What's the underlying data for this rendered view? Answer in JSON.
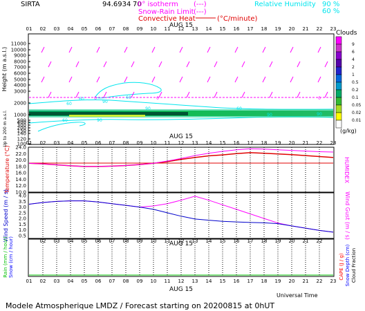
{
  "header": {
    "station": "SIRTA",
    "coords": "94.6934",
    "coords_tail": "70",
    "isotherm_label": "0° isotherm",
    "isotherm_dash": "(---)",
    "snow_label": "Snow-Rain Limit",
    "snow_dash": "(---)",
    "conv_label": "Convective Heat",
    "conv_unit": "(°C/minute)",
    "rh_label": "Relative Humidity",
    "rh_90": "90 %",
    "rh_60": "60 %"
  },
  "date_label": "AUG 15",
  "hours": [
    "01",
    "02",
    "03",
    "04",
    "05",
    "06",
    "07",
    "08",
    "09",
    "10",
    "11",
    "12",
    "13",
    "14",
    "15",
    "16",
    "17",
    "18",
    "19",
    "20",
    "21",
    "22",
    "23"
  ],
  "footer": {
    "universal_time": "Universal Time",
    "forecast": "Modele Atmospherique LMDZ / Forecast starting on 20200815 at 0hUT"
  },
  "colors": {
    "isotherm": "#ff00ff",
    "relative_humidity": "#00e5ee",
    "temperature": "#e00000",
    "humidex": "#ff00ff",
    "wind_speed": "#0000cc",
    "wind_gust": "#ff00ff",
    "rain": "#00c000",
    "snow": "#0000ff",
    "cape": "#ff0000"
  },
  "chart_data": [
    {
      "type": "heatmap",
      "ylabel": "Height  (m a.s.l.)",
      "ylabel_low": "Up to 200 m a.s.l.",
      "yticks": [
        "11000",
        "10000",
        "9000",
        "8000",
        "7000",
        "6000",
        "5000",
        "4000",
        "3000",
        "2000",
        "1000",
        "500",
        "400",
        "300",
        "200",
        "150",
        "140",
        "120",
        "100"
      ],
      "isotherm_marks": [
        "0",
        "0",
        "0",
        "0",
        "0",
        "0"
      ],
      "rh_marks": [
        "60",
        "60",
        "90",
        "60",
        "90",
        "60",
        "60",
        "90",
        "90",
        "90"
      ],
      "clouds": {
        "title": "Clouds",
        "levels": [
          "9",
          "6",
          "4",
          "2",
          "1",
          "0.5",
          "0.2",
          "0.1",
          "0.05",
          "0.02",
          "0.01"
        ],
        "unit": "(g/kg)",
        "colors": [
          "#ff00ff",
          "#cc33cc",
          "#8800cc",
          "#5500aa",
          "#2222cc",
          "#0066dd",
          "#0099cc",
          "#00aa66",
          "#33bb33",
          "#aadd22",
          "#ffff00",
          "#ffffff"
        ]
      },
      "wind_barbs_rows": [
        9500,
        7500,
        5000,
        2700
      ]
    },
    {
      "type": "line",
      "ylabel": "Temperature (°C)",
      "ylabel_right": "HUMIDEX",
      "yticks": [
        "24.0",
        "22.0",
        "20.0",
        "18.0",
        "16.0",
        "14.0",
        "12.0",
        "10.0"
      ],
      "ylim": [
        10,
        24
      ],
      "x": [
        1,
        2,
        3,
        4,
        5,
        6,
        7,
        8,
        9,
        10,
        11,
        12,
        13,
        14,
        15,
        16,
        17,
        18,
        19,
        20,
        21,
        22,
        23
      ],
      "series": [
        {
          "name": "Temperature",
          "values": [
            19.0,
            18.8,
            18.5,
            18.2,
            18.0,
            18.0,
            18.1,
            18.3,
            18.6,
            19.0,
            19.5,
            20.2,
            20.8,
            21.3,
            21.6,
            22.0,
            22.3,
            22.1,
            21.9,
            21.7,
            21.4,
            21.1,
            20.8
          ]
        },
        {
          "name": "Humidex",
          "values": [
            19.0,
            18.8,
            18.5,
            18.2,
            18.0,
            18.0,
            18.1,
            18.3,
            18.6,
            19.0,
            19.7,
            20.5,
            21.4,
            22.1,
            22.7,
            23.2,
            23.5,
            23.4,
            23.2,
            23.0,
            22.8,
            22.6,
            22.5
          ]
        }
      ]
    },
    {
      "type": "line",
      "ylabel": "Wind Speed (m / s)",
      "ylabel_right": "Wind Gust  (m / s)",
      "yticks": [
        "4.0",
        "3.5",
        "3.0",
        "2.5",
        "2.0",
        "1.5",
        "1.0",
        "0.5"
      ],
      "ylim": [
        0.5,
        4.0
      ],
      "x": [
        1,
        2,
        3,
        4,
        5,
        6,
        7,
        8,
        9,
        10,
        11,
        12,
        13,
        14,
        15,
        16,
        17,
        18,
        19,
        20,
        21,
        22,
        23
      ],
      "series": [
        {
          "name": "Wind Speed",
          "values": [
            3.25,
            3.4,
            3.5,
            3.55,
            3.55,
            3.45,
            3.3,
            3.15,
            3.0,
            2.8,
            2.5,
            2.2,
            1.95,
            1.85,
            1.75,
            1.7,
            1.65,
            1.62,
            1.55,
            1.35,
            1.15,
            0.95,
            0.8
          ]
        },
        {
          "name": "Wind Gust",
          "values": [
            3.25,
            3.4,
            3.5,
            3.55,
            3.55,
            3.45,
            3.3,
            3.15,
            3.0,
            3.1,
            3.3,
            3.6,
            3.95,
            3.6,
            3.2,
            2.8,
            2.4,
            2.0,
            1.6,
            1.35,
            1.15,
            0.95,
            0.8
          ]
        }
      ]
    },
    {
      "type": "line",
      "ylabel": "Rain (mm / hour)",
      "ylabel2": "Snow (cm / hour)",
      "ylabel_right": "CAPE (J / g)",
      "ylabel_right2": "Snow Depth (cm)",
      "ylabel_right3": "Cloud Fraction",
      "x": [
        1,
        2,
        3,
        4,
        5,
        6,
        7,
        8,
        9,
        10,
        11,
        12,
        13,
        14,
        15,
        16,
        17,
        18,
        19,
        20,
        21,
        22,
        23
      ],
      "series": [
        {
          "name": "Rain",
          "values": [
            0,
            0,
            0,
            0,
            0,
            0,
            0,
            0,
            0,
            0,
            0,
            0,
            0,
            0,
            0,
            0,
            0,
            0,
            0,
            0,
            0,
            0,
            0
          ]
        }
      ]
    }
  ]
}
